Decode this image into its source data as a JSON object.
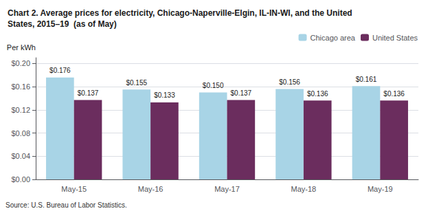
{
  "chart_data": {
    "type": "bar",
    "title": "Chart 2. Average prices for electricity, Chicago-Naperville-Elgin, IL-IN-WI, and the United\nStates, 2015–19  (as of May)",
    "y_label": "Per kWh",
    "annotations": [
      "Source: U.S. Bureau of Labor Statistics."
    ],
    "categories": [
      "May-15",
      "May-16",
      "May-17",
      "May-18",
      "May-19"
    ],
    "series": [
      {
        "name": "Chicago area",
        "color": "#a8d4e6",
        "values": [
          0.176,
          0.155,
          0.15,
          0.156,
          0.161
        ],
        "value_labels": [
          "$0.176",
          "$0.155",
          "$0.150",
          "$0.156",
          "$0.161"
        ]
      },
      {
        "name": "United States",
        "color": "#6b2d5e",
        "values": [
          0.137,
          0.133,
          0.137,
          0.136,
          0.136
        ],
        "value_labels": [
          "$0.137",
          "$0.133",
          "$0.137",
          "$0.136",
          "$0.136"
        ]
      }
    ],
    "ylim": [
      0,
      0.21
    ],
    "yticks": [
      {
        "value": 0.0,
        "label": "$0.00"
      },
      {
        "value": 0.04,
        "label": "$0.04"
      },
      {
        "value": 0.08,
        "label": "$0.08"
      },
      {
        "value": 0.12,
        "label": "$0.12"
      },
      {
        "value": 0.16,
        "label": "$0.16"
      },
      {
        "value": 0.2,
        "label": "$0.20"
      }
    ],
    "grid": true,
    "legend": "upper right",
    "data_labels": true
  }
}
